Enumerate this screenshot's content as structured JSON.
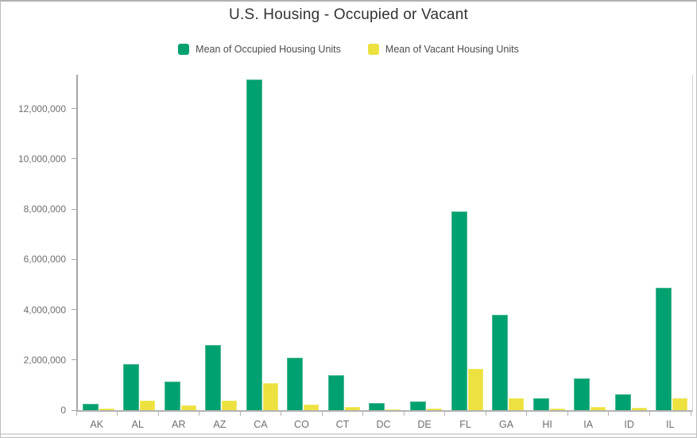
{
  "title": "U.S. Housing - Occupied or Vacant",
  "legend": {
    "items": [
      {
        "label": "Mean of Occupied Housing Units",
        "color": "#00a170"
      },
      {
        "label": "Mean of Vacant Housing Units",
        "color": "#ece13f"
      }
    ]
  },
  "colors": {
    "occupied_fill": "#00a170",
    "occupied_edge": "#4db893",
    "vacant_fill": "#ece13f",
    "vacant_edge": "#f0e96a",
    "axis_line": "#a6a6a6",
    "axis_text": "#6e6e6e",
    "title_text": "#323232",
    "legend_text": "#4d4d4d"
  },
  "chart_data": {
    "type": "bar",
    "title": "U.S. Housing - Occupied or Vacant",
    "xlabel": "",
    "ylabel": "",
    "grid": false,
    "legend_position": "top",
    "ylim": [
      0,
      13350000
    ],
    "yticks": [
      0,
      2000000,
      4000000,
      6000000,
      8000000,
      10000000,
      12000000
    ],
    "ytick_labels": [
      "0",
      "2,000,000",
      "4,000,000",
      "6,000,000",
      "8,000,000",
      "10,000,000",
      "12,000,000"
    ],
    "categories": [
      "AK",
      "AL",
      "AR",
      "AZ",
      "CA",
      "CO",
      "CT",
      "DC",
      "DE",
      "FL",
      "GA",
      "HI",
      "IA",
      "ID",
      "IL"
    ],
    "series": [
      {
        "name": "Mean of Occupied Housing Units",
        "key": "occupied",
        "color": "#00a170",
        "edge": "#4db893",
        "values": [
          250000,
          1850000,
          1150000,
          2600000,
          13150000,
          2100000,
          1380000,
          270000,
          340000,
          7900000,
          3800000,
          460000,
          1280000,
          640000,
          4870000
        ]
      },
      {
        "name": "Mean of Vacant Housing Units",
        "key": "vacant",
        "color": "#ece13f",
        "edge": "#f0e96a",
        "values": [
          60000,
          370000,
          190000,
          390000,
          1090000,
          210000,
          120000,
          30000,
          70000,
          1650000,
          490000,
          70000,
          140000,
          80000,
          490000
        ]
      }
    ]
  }
}
